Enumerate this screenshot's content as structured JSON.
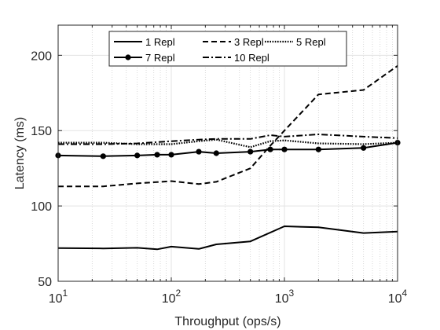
{
  "chart_data": {
    "type": "line",
    "title": "",
    "xlabel": "Throughput (ops/s)",
    "ylabel": "Latency (ms)",
    "xscale": "log",
    "xlim": [
      10,
      10000
    ],
    "ylim": [
      50,
      220
    ],
    "x_ticks": [
      10,
      100,
      1000,
      10000
    ],
    "x_tick_labels": [
      {
        "base": "10",
        "exp": "1"
      },
      {
        "base": "10",
        "exp": "2"
      },
      {
        "base": "10",
        "exp": "3"
      },
      {
        "base": "10",
        "exp": "4"
      }
    ],
    "y_ticks": [
      50,
      100,
      150,
      200
    ],
    "grid": "x minor dotted",
    "legend": {
      "placement": "top-center",
      "columns": 3
    },
    "series": [
      {
        "name": "1 Repl",
        "style": "solid",
        "marker": "none",
        "points": [
          [
            10,
            72
          ],
          [
            25,
            71.8
          ],
          [
            50,
            72.2
          ],
          [
            75,
            71.2
          ],
          [
            100,
            73
          ],
          [
            175,
            71.5
          ],
          [
            250,
            74.5
          ],
          [
            500,
            76.5
          ],
          [
            1000,
            86.5
          ],
          [
            2000,
            85.8
          ],
          [
            5000,
            82
          ],
          [
            10000,
            83
          ]
        ]
      },
      {
        "name": "3 Repl",
        "style": "dashed",
        "marker": "none",
        "points": [
          [
            10,
            113
          ],
          [
            25,
            113
          ],
          [
            50,
            115
          ],
          [
            100,
            116.5
          ],
          [
            175,
            114.5
          ],
          [
            250,
            116
          ],
          [
            500,
            125
          ],
          [
            750,
            140
          ],
          [
            1000,
            150
          ],
          [
            2000,
            174
          ],
          [
            5000,
            177
          ],
          [
            10000,
            193
          ]
        ]
      },
      {
        "name": "5 Repl",
        "style": "dotted",
        "marker": "none",
        "points": [
          [
            10,
            142
          ],
          [
            25,
            142
          ],
          [
            50,
            141
          ],
          [
            100,
            141
          ],
          [
            175,
            143
          ],
          [
            250,
            144
          ],
          [
            500,
            139
          ],
          [
            750,
            143
          ],
          [
            1000,
            143.5
          ],
          [
            2000,
            141.5
          ],
          [
            5000,
            141
          ],
          [
            10000,
            142
          ]
        ]
      },
      {
        "name": "7 Repl",
        "style": "solid",
        "marker": "circle",
        "points": [
          [
            10,
            133.5
          ],
          [
            25,
            133
          ],
          [
            50,
            133.5
          ],
          [
            75,
            134
          ],
          [
            100,
            134
          ],
          [
            175,
            136
          ],
          [
            250,
            135
          ],
          [
            500,
            136
          ],
          [
            750,
            137.5
          ],
          [
            1000,
            137.5
          ],
          [
            2000,
            137.5
          ],
          [
            5000,
            138.5
          ],
          [
            10000,
            142
          ]
        ]
      },
      {
        "name": "10 Repl",
        "style": "dashdot",
        "marker": "none",
        "points": [
          [
            10,
            141
          ],
          [
            25,
            141
          ],
          [
            50,
            141.5
          ],
          [
            100,
            143
          ],
          [
            175,
            144
          ],
          [
            250,
            144.5
          ],
          [
            500,
            144.5
          ],
          [
            750,
            147
          ],
          [
            1000,
            146
          ],
          [
            2000,
            147.5
          ],
          [
            5000,
            146
          ],
          [
            10000,
            145
          ]
        ]
      }
    ]
  }
}
